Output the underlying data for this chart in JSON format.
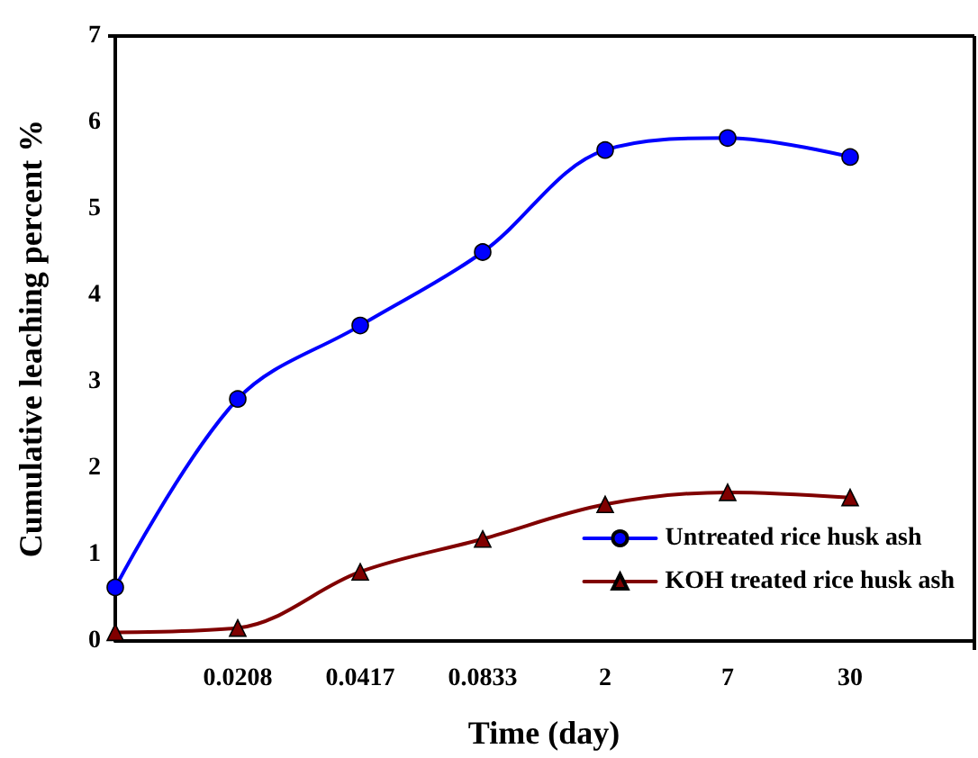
{
  "chart_data": {
    "type": "line",
    "xlabel": "Time (day)",
    "ylabel": "Cumulative leaching percent %",
    "categories": [
      null,
      "0.0208",
      "0.0417",
      "0.0833",
      "2",
      "7",
      "30",
      null
    ],
    "series": [
      {
        "name": "Untreated rice husk ash",
        "color": "#0000ff",
        "marker": "circle",
        "values": [
          0.62,
          2.8,
          3.65,
          4.5,
          5.68,
          5.82,
          5.6,
          null
        ]
      },
      {
        "name": "KOH treated rice husk ash",
        "color": "#800000",
        "marker": "triangle",
        "values": [
          0.1,
          0.15,
          0.8,
          1.18,
          1.58,
          1.72,
          1.66,
          null
        ]
      }
    ],
    "ylim": [
      0,
      7
    ],
    "yticks": [
      0,
      1,
      2,
      3,
      4,
      5,
      6,
      7
    ],
    "grid": false,
    "legend": "bottom right"
  }
}
